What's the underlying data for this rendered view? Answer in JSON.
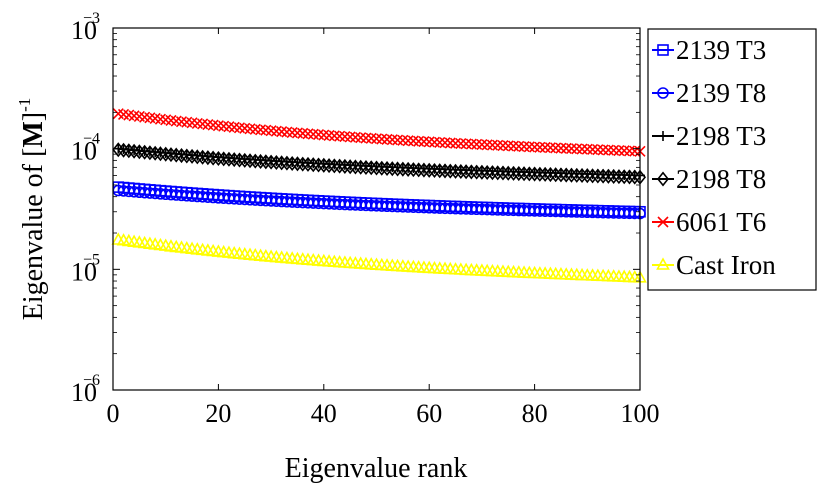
{
  "chart_data": {
    "type": "scatter",
    "xlabel": "Eigenvalue rank",
    "ylabel_prefix": "Eigenvalue of [",
    "ylabel_bold": "M",
    "ylabel_suffix": "]",
    "ylabel_sup": "-1",
    "xlim": [
      0,
      100
    ],
    "ylim": [
      1e-06,
      0.001
    ],
    "yscale": "log",
    "xticks": [
      "0",
      "20",
      "40",
      "60",
      "80",
      "100"
    ],
    "yticks": [
      {
        "base": "10",
        "exp": "−3"
      },
      {
        "base": "10",
        "exp": "−4"
      },
      {
        "base": "10",
        "exp": "−5"
      },
      {
        "base": "10",
        "exp": "−6"
      }
    ],
    "legend_position": "outside-right",
    "series": [
      {
        "name": "2139 T3",
        "color": "#0000ff",
        "marker": "square",
        "y_start": 4.8e-05,
        "y_end": 3e-05
      },
      {
        "name": "2139 T8",
        "color": "#0000ff",
        "marker": "circle",
        "y_start": 4.5e-05,
        "y_end": 2.9e-05
      },
      {
        "name": "2198 T3",
        "color": "#000000",
        "marker": "plus",
        "y_start": 0.0001,
        "y_end": 6e-05
      },
      {
        "name": "2198 T8",
        "color": "#000000",
        "marker": "diamond",
        "y_start": 9.8e-05,
        "y_end": 5.8e-05
      },
      {
        "name": "6061 T6",
        "color": "#ff0000",
        "marker": "x",
        "y_start": 0.000195,
        "y_end": 9.5e-05
      },
      {
        "name": "Cast Iron",
        "color": "#ffff00",
        "marker": "triangle",
        "y_start": 1.75e-05,
        "y_end": 8.5e-06
      }
    ]
  }
}
